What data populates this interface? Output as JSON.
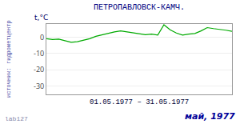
{
  "chart_data": {
    "type": "line",
    "title": "ПЕТРОПАВЛОВСК-КАМЧ.",
    "ylabel": "t,°C",
    "xlabel": "01.05.1977 – 31.05.1977",
    "annotations": [
      "источник: гидрометцентр",
      "lab127",
      "май, 1977"
    ],
    "x": [
      1,
      2,
      3,
      4,
      5,
      6,
      7,
      8,
      9,
      10,
      11,
      12,
      13,
      14,
      15,
      16,
      17,
      18,
      19,
      20,
      21,
      22,
      23,
      24,
      25,
      26,
      27,
      28,
      29,
      30,
      31
    ],
    "values": [
      -1.0,
      -1.5,
      -1.2,
      -2.2,
      -3.2,
      -2.8,
      -2.0,
      -1.0,
      0.5,
      1.5,
      2.2,
      3.2,
      3.8,
      3.2,
      2.5,
      2.0,
      1.5,
      1.8,
      1.2,
      7.5,
      4.5,
      2.5,
      1.2,
      1.8,
      2.2,
      3.8,
      5.8,
      5.2,
      4.8,
      4.2,
      3.5
    ],
    "color": "#00aa00",
    "xlim": [
      1,
      31
    ],
    "xticks": [],
    "ylim": [
      -35,
      8
    ],
    "yticks": [
      0,
      -10,
      -20,
      -30
    ],
    "grid": true,
    "tick_labels": "y"
  }
}
